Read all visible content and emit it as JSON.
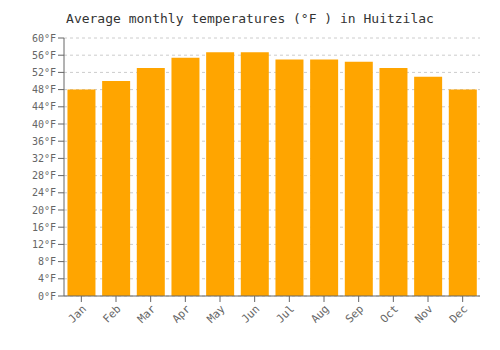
{
  "chart_data": {
    "type": "bar",
    "title": "Average monthly temperatures (°F ) in Huitzilac",
    "categories": [
      "Jan",
      "Feb",
      "Mar",
      "Apr",
      "May",
      "Jun",
      "Jul",
      "Aug",
      "Sep",
      "Oct",
      "Nov",
      "Dec"
    ],
    "values": [
      48.0,
      50.0,
      53.0,
      55.4,
      56.7,
      56.7,
      55.0,
      55.0,
      54.5,
      53.0,
      51.0,
      48.0
    ],
    "color": "#FFA500",
    "ylim": [
      0,
      60
    ],
    "yticks": [
      {
        "value": 0,
        "label": "0°F"
      },
      {
        "value": 4,
        "label": "4°F"
      },
      {
        "value": 8,
        "label": "8°F"
      },
      {
        "value": 12,
        "label": "12°F"
      },
      {
        "value": 16,
        "label": "16°F"
      },
      {
        "value": 20,
        "label": "20°F"
      },
      {
        "value": 24,
        "label": "24°F"
      },
      {
        "value": 28,
        "label": "28°F"
      },
      {
        "value": 32,
        "label": "32°F"
      },
      {
        "value": 36,
        "label": "36°F"
      },
      {
        "value": 40,
        "label": "40°F"
      },
      {
        "value": 44,
        "label": "44°F"
      },
      {
        "value": 48,
        "label": "48°F"
      },
      {
        "value": 52,
        "label": "52°F"
      },
      {
        "value": 56,
        "label": "56°F"
      },
      {
        "value": 60,
        "label": "60°F"
      }
    ],
    "grid": true
  }
}
